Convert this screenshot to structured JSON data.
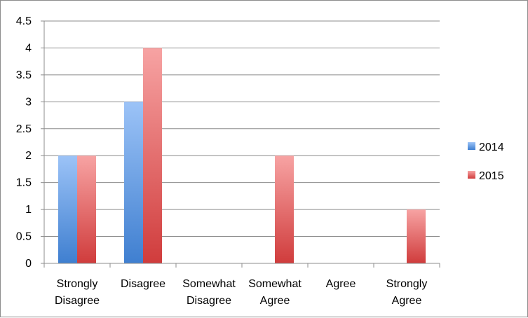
{
  "chart_data": {
    "type": "bar",
    "categories": [
      [
        "Strongly",
        "Disagree"
      ],
      [
        "Disagree"
      ],
      [
        "Somewhat",
        "Disagree"
      ],
      [
        "Somewhat",
        "Agree"
      ],
      [
        "Agree"
      ],
      [
        "Strongly",
        "Agree"
      ]
    ],
    "series": [
      {
        "name": "2014",
        "values": [
          2,
          3,
          0,
          0,
          0,
          0
        ],
        "color_top": "#9cc3f7",
        "color_bottom": "#3f7fd0"
      },
      {
        "name": "2015",
        "values": [
          2,
          4,
          0,
          2,
          0,
          1
        ],
        "color_top": "#f7a3a3",
        "color_bottom": "#d03c3c"
      }
    ],
    "ylim": [
      0,
      4.5
    ],
    "yticks": [
      0,
      0.5,
      1,
      1.5,
      2,
      2.5,
      3,
      3.5,
      4,
      4.5
    ],
    "ytick_labels": [
      "0",
      "0.5",
      "1",
      "1.5",
      "2",
      "2.5",
      "3",
      "3.5",
      "4",
      "4.5"
    ],
    "grid": true,
    "legend": "right"
  }
}
